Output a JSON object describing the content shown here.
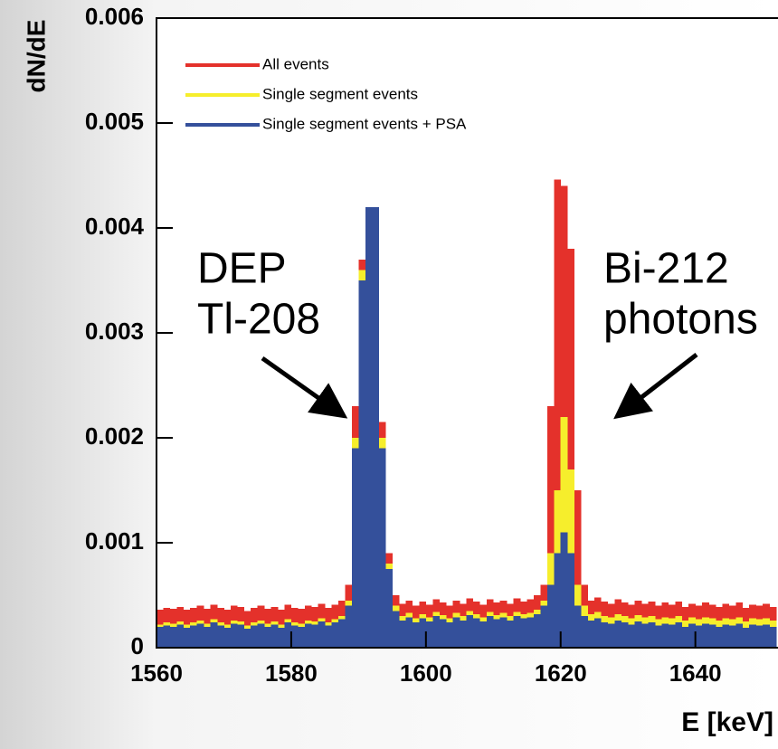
{
  "chart_data": {
    "type": "histogram",
    "xlabel": "E [keV]",
    "ylabel": "dN/dE",
    "bins": [
      1560,
      1561,
      1562,
      1563,
      1564,
      1565,
      1566,
      1567,
      1568,
      1569,
      1570,
      1571,
      1572,
      1573,
      1574,
      1575,
      1576,
      1577,
      1578,
      1579,
      1580,
      1581,
      1582,
      1583,
      1584,
      1585,
      1586,
      1587,
      1588,
      1589,
      1590,
      1591,
      1592,
      1593,
      1594,
      1595,
      1596,
      1597,
      1598,
      1599,
      1600,
      1601,
      1602,
      1603,
      1604,
      1605,
      1606,
      1607,
      1608,
      1609,
      1610,
      1611,
      1612,
      1613,
      1614,
      1615,
      1616,
      1617,
      1618,
      1619,
      1620,
      1621,
      1622,
      1623,
      1624,
      1625,
      1626,
      1627,
      1628,
      1629,
      1630,
      1631,
      1632,
      1633,
      1634,
      1635,
      1636,
      1637,
      1638,
      1639,
      1640,
      1641,
      1642,
      1643,
      1644,
      1645,
      1646,
      1647,
      1648,
      1649,
      1650,
      1651,
      1652
    ],
    "series": [
      {
        "name": "All events",
        "color": "#e4312b",
        "values": [
          0.00036,
          0.00038,
          0.00037,
          0.00039,
          0.00036,
          0.00038,
          0.0004,
          0.00037,
          0.00041,
          0.00038,
          0.00036,
          0.0004,
          0.00039,
          0.00035,
          0.00038,
          0.0004,
          0.00037,
          0.00039,
          0.00036,
          0.00041,
          0.00038,
          0.00037,
          0.0004,
          0.00039,
          0.00042,
          0.00038,
          0.00041,
          0.00045,
          0.0006,
          0.0023,
          0.0037,
          0.0042,
          0.0042,
          0.00215,
          0.0009,
          0.0005,
          0.00042,
          0.00045,
          0.0004,
          0.00044,
          0.00041,
          0.00046,
          0.00043,
          0.0004,
          0.00045,
          0.00042,
          0.00047,
          0.00044,
          0.00041,
          0.00046,
          0.00043,
          0.00045,
          0.00042,
          0.00047,
          0.00044,
          0.00046,
          0.0005,
          0.0006,
          0.0023,
          0.00446,
          0.0044,
          0.0038,
          0.0015,
          0.0006,
          0.00045,
          0.00048,
          0.00044,
          0.00042,
          0.00046,
          0.00043,
          0.00041,
          0.00045,
          0.00042,
          0.00044,
          0.0004,
          0.00043,
          0.00041,
          0.00044,
          0.00039,
          0.00042,
          0.0004,
          0.00043,
          0.00041,
          0.00039,
          0.00042,
          0.0004,
          0.00043,
          0.00038,
          0.00041,
          0.0004,
          0.00042,
          0.00039
        ]
      },
      {
        "name": "Single segment events",
        "color": "#f6ee2c",
        "values": [
          0.00022,
          0.00024,
          0.00023,
          0.00025,
          0.00022,
          0.00024,
          0.00026,
          0.00023,
          0.00027,
          0.00024,
          0.00022,
          0.00026,
          0.00025,
          0.00021,
          0.00024,
          0.00026,
          0.00023,
          0.00025,
          0.00022,
          0.00027,
          0.00024,
          0.00023,
          0.00026,
          0.00025,
          0.00028,
          0.00024,
          0.00027,
          0.0003,
          0.00045,
          0.002,
          0.0036,
          0.0042,
          0.0042,
          0.002,
          0.0008,
          0.0004,
          0.0003,
          0.00033,
          0.00028,
          0.00032,
          0.00029,
          0.00034,
          0.00031,
          0.00028,
          0.00033,
          0.0003,
          0.00035,
          0.00032,
          0.00029,
          0.00034,
          0.00031,
          0.00033,
          0.0003,
          0.00034,
          0.00032,
          0.00033,
          0.00036,
          0.00045,
          0.0009,
          0.0015,
          0.0022,
          0.0017,
          0.0006,
          0.0004,
          0.00032,
          0.00034,
          0.0003,
          0.00029,
          0.00032,
          0.0003,
          0.00028,
          0.00031,
          0.00029,
          0.0003,
          0.00027,
          0.00029,
          0.00028,
          0.0003,
          0.00026,
          0.00029,
          0.00027,
          0.00029,
          0.00028,
          0.00026,
          0.00028,
          0.00027,
          0.00029,
          0.00025,
          0.00028,
          0.00027,
          0.00028,
          0.00026
        ]
      },
      {
        "name": "Single segment events + PSA",
        "color": "#34509b",
        "values": [
          0.0002,
          0.00021,
          0.0002,
          0.00022,
          0.00019,
          0.00021,
          0.00023,
          0.0002,
          0.00024,
          0.00021,
          0.00019,
          0.00023,
          0.00022,
          0.00018,
          0.00021,
          0.00023,
          0.0002,
          0.00022,
          0.00019,
          0.00024,
          0.00021,
          0.0002,
          0.00023,
          0.00022,
          0.00025,
          0.00021,
          0.00024,
          0.00027,
          0.0004,
          0.0019,
          0.0035,
          0.0042,
          0.0042,
          0.0019,
          0.00075,
          0.00035,
          0.00026,
          0.00029,
          0.00024,
          0.00028,
          0.00025,
          0.0003,
          0.00027,
          0.00024,
          0.00029,
          0.00026,
          0.00031,
          0.00028,
          0.00025,
          0.0003,
          0.00027,
          0.00029,
          0.00026,
          0.0003,
          0.00028,
          0.00029,
          0.00032,
          0.0004,
          0.0006,
          0.0009,
          0.0011,
          0.0009,
          0.0004,
          0.0003,
          0.00026,
          0.00028,
          0.00024,
          0.00023,
          0.00026,
          0.00024,
          0.00022,
          0.00025,
          0.00023,
          0.00024,
          0.00021,
          0.00023,
          0.00022,
          0.00024,
          0.0002,
          0.00023,
          0.00021,
          0.00023,
          0.00022,
          0.0002,
          0.00022,
          0.00021,
          0.00023,
          0.00019,
          0.00022,
          0.00021,
          0.00022,
          0.0002
        ]
      }
    ],
    "xlim": [
      1560,
      1652
    ],
    "xticks": [
      1560,
      1580,
      1600,
      1620,
      1640
    ],
    "ylim": [
      0,
      0.006
    ],
    "yticks": [
      0,
      0.001,
      0.002,
      0.003,
      0.004,
      0.005,
      0.006
    ],
    "legend": "upper left",
    "annotations": [
      "DEP",
      "Tl-208",
      "Bi-212",
      "photons"
    ]
  }
}
